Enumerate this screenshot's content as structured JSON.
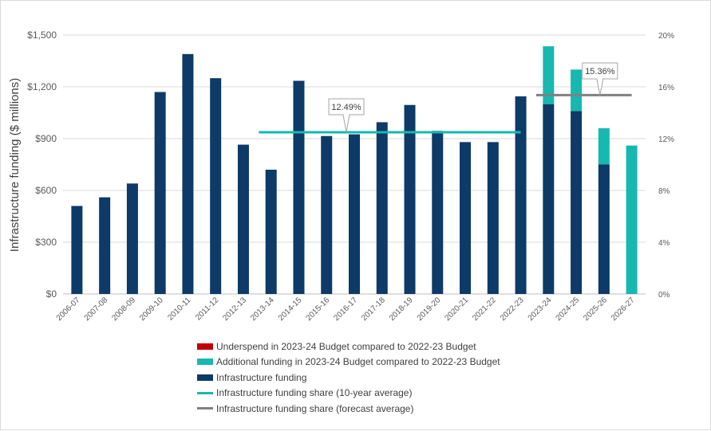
{
  "chart_data": {
    "type": "bar",
    "ylabel": "Infrastructure funding ($ millions)",
    "categories": [
      "2006-07",
      "2007-08",
      "2008-09",
      "2009-10",
      "2010-11",
      "2011-12",
      "2012-13",
      "2013-14",
      "2014-15",
      "2015-16",
      "2016-17",
      "2017-18",
      "2018-19",
      "2019-20",
      "2020-21",
      "2021-22",
      "2022-23",
      "2023-24",
      "2024-25",
      "2025-26",
      "2026-27"
    ],
    "y_ticks": [
      "$0",
      "$300",
      "$600",
      "$900",
      "$1,200",
      "$1,500"
    ],
    "y_tick_values": [
      0,
      300,
      600,
      900,
      1200,
      1500
    ],
    "y2_ticks": [
      "0%",
      "4%",
      "8%",
      "12%",
      "16%",
      "20%"
    ],
    "y2_tick_values": [
      0,
      4,
      8,
      12,
      16,
      20
    ],
    "ylim": [
      0,
      1500
    ],
    "y2lim": [
      0,
      20
    ],
    "series": [
      {
        "name": "Underspend in 2023-24 Budget compared to 2022-23 Budget",
        "color": "#c00000",
        "kind": "bar",
        "values": [
          0,
          0,
          0,
          0,
          0,
          0,
          0,
          0,
          0,
          0,
          0,
          0,
          0,
          0,
          0,
          0,
          0,
          0,
          0,
          0,
          0
        ]
      },
      {
        "name": "Additional funding in 2023-24 Budget compared to 2022-23 Budget",
        "color": "#17b8b0",
        "kind": "bar",
        "values": [
          0,
          0,
          0,
          0,
          0,
          0,
          0,
          0,
          0,
          0,
          0,
          0,
          0,
          0,
          0,
          0,
          0,
          335,
          240,
          210,
          860
        ]
      },
      {
        "name": "Infrastructure funding",
        "color": "#0d3a66",
        "kind": "bar",
        "values": [
          510,
          560,
          640,
          1170,
          1390,
          1250,
          865,
          720,
          1235,
          915,
          925,
          995,
          1095,
          945,
          880,
          880,
          1145,
          1100,
          1060,
          750,
          0
        ]
      },
      {
        "name": "Infrastructure funding share (10-year average)",
        "color": "#17b8b0",
        "kind": "line",
        "x_range": [
          "2013-14",
          "2022-23"
        ],
        "value": 12.49,
        "label": "12.49%"
      },
      {
        "name": "Infrastructure funding share (forecast average)",
        "color": "#808080",
        "kind": "line",
        "x_range": [
          "2023-24",
          "2026-27"
        ],
        "value": 15.36,
        "label": "15.36%"
      }
    ],
    "legend_position": "bottom",
    "grid": true
  }
}
